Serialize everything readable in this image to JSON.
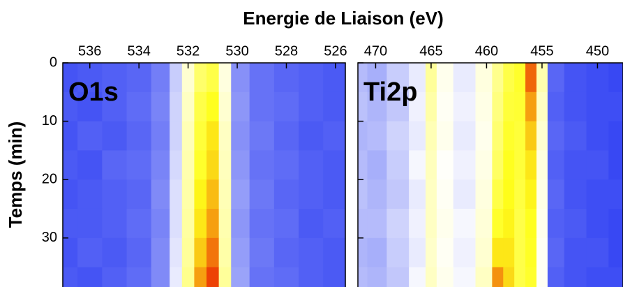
{
  "chart_data": [
    {
      "type": "heatmap",
      "title": "Energie de Liaison (eV)",
      "ylabel": "Temps (min)",
      "label": "O1s",
      "x": [
        537,
        536,
        535,
        534,
        533,
        532.5,
        532,
        531.5,
        531,
        530.5,
        530,
        529,
        528,
        527,
        526
      ],
      "y": [
        0,
        5,
        10,
        15,
        20,
        25,
        30,
        35
      ],
      "z": [
        [
          0.05,
          0.06,
          0.07,
          0.08,
          0.12,
          0.25,
          0.4,
          0.55,
          0.6,
          0.38,
          0.15,
          0.1,
          0.08,
          0.07,
          0.06
        ],
        [
          0.06,
          0.05,
          0.07,
          0.09,
          0.13,
          0.26,
          0.42,
          0.6,
          0.66,
          0.4,
          0.16,
          0.1,
          0.09,
          0.07,
          0.06
        ],
        [
          0.05,
          0.07,
          0.06,
          0.08,
          0.12,
          0.26,
          0.44,
          0.62,
          0.7,
          0.42,
          0.15,
          0.11,
          0.08,
          0.06,
          0.07
        ],
        [
          0.06,
          0.05,
          0.08,
          0.09,
          0.13,
          0.27,
          0.45,
          0.64,
          0.72,
          0.43,
          0.16,
          0.1,
          0.09,
          0.07,
          0.06
        ],
        [
          0.05,
          0.06,
          0.07,
          0.08,
          0.14,
          0.28,
          0.46,
          0.68,
          0.76,
          0.44,
          0.17,
          0.11,
          0.08,
          0.07,
          0.06
        ],
        [
          0.06,
          0.06,
          0.07,
          0.09,
          0.13,
          0.28,
          0.47,
          0.7,
          0.8,
          0.45,
          0.16,
          0.1,
          0.09,
          0.06,
          0.07
        ],
        [
          0.05,
          0.07,
          0.06,
          0.08,
          0.14,
          0.29,
          0.48,
          0.74,
          0.86,
          0.46,
          0.17,
          0.11,
          0.08,
          0.07,
          0.06
        ],
        [
          0.06,
          0.05,
          0.07,
          0.09,
          0.14,
          0.3,
          0.5,
          0.8,
          0.93,
          0.48,
          0.18,
          0.1,
          0.09,
          0.07,
          0.06
        ]
      ],
      "zlim": [
        0,
        1
      ],
      "colormap": [
        "#2436f2",
        "#ffffff",
        "#ffff1a",
        "#e81000"
      ],
      "xlim": [
        537.1,
        525.6
      ],
      "ylim": [
        0,
        38.4
      ],
      "xticks": [
        536,
        534,
        532,
        530,
        528,
        526
      ],
      "yticks": [
        0,
        10,
        20,
        30
      ],
      "ytick_labels": true
    },
    {
      "type": "heatmap",
      "label": "Ti2p",
      "x": [
        471.5,
        470,
        468,
        466,
        465,
        464,
        462,
        460,
        459,
        458,
        457,
        456,
        455,
        454,
        452,
        450,
        448
      ],
      "y": [
        0,
        5,
        10,
        15,
        20,
        25,
        30,
        35
      ],
      "z": [
        [
          0.22,
          0.2,
          0.25,
          0.3,
          0.48,
          0.36,
          0.3,
          0.38,
          0.5,
          0.6,
          0.64,
          0.88,
          0.45,
          0.08,
          0.05,
          0.04,
          0.03
        ],
        [
          0.23,
          0.21,
          0.24,
          0.31,
          0.46,
          0.35,
          0.31,
          0.37,
          0.52,
          0.62,
          0.63,
          0.8,
          0.42,
          0.07,
          0.05,
          0.04,
          0.04
        ],
        [
          0.21,
          0.22,
          0.26,
          0.3,
          0.44,
          0.36,
          0.3,
          0.36,
          0.54,
          0.64,
          0.62,
          0.74,
          0.4,
          0.08,
          0.06,
          0.04,
          0.03
        ],
        [
          0.22,
          0.2,
          0.25,
          0.32,
          0.43,
          0.34,
          0.31,
          0.37,
          0.56,
          0.66,
          0.62,
          0.7,
          0.38,
          0.07,
          0.05,
          0.05,
          0.03
        ],
        [
          0.23,
          0.21,
          0.24,
          0.3,
          0.42,
          0.35,
          0.3,
          0.38,
          0.6,
          0.67,
          0.61,
          0.68,
          0.37,
          0.08,
          0.05,
          0.04,
          0.04
        ],
        [
          0.22,
          0.22,
          0.26,
          0.31,
          0.42,
          0.36,
          0.32,
          0.39,
          0.64,
          0.68,
          0.6,
          0.66,
          0.36,
          0.07,
          0.06,
          0.04,
          0.03
        ],
        [
          0.21,
          0.2,
          0.25,
          0.3,
          0.41,
          0.35,
          0.31,
          0.4,
          0.7,
          0.7,
          0.6,
          0.65,
          0.35,
          0.08,
          0.05,
          0.05,
          0.03
        ],
        [
          0.22,
          0.21,
          0.24,
          0.32,
          0.42,
          0.36,
          0.32,
          0.42,
          0.82,
          0.72,
          0.6,
          0.64,
          0.35,
          0.07,
          0.05,
          0.04,
          0.04
        ]
      ],
      "zlim": [
        0,
        1
      ],
      "colormap": [
        "#2436f2",
        "#ffffff",
        "#ffff1a",
        "#e81000"
      ],
      "xlim": [
        471.6,
        447.7
      ],
      "ylim": [
        0,
        38.4
      ],
      "xticks": [
        470,
        465,
        460,
        455,
        450
      ],
      "yticks": [
        0,
        10,
        20,
        30
      ],
      "ytick_labels": false
    }
  ]
}
